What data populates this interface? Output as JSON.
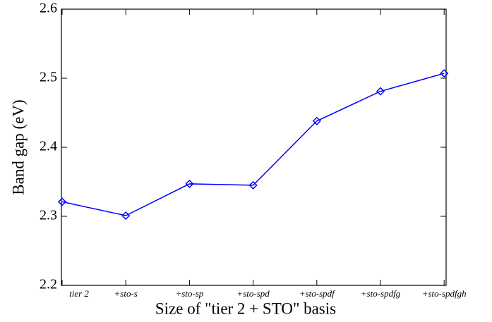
{
  "chart_data": {
    "type": "line",
    "x_label": "Size of \"tier 2 + STO\" basis",
    "y_label": "Band gap (eV)",
    "categories": [
      "tier 2",
      "+sto-s",
      "+sto-sp",
      "+sto-spd",
      "+sto-spdf",
      "+sto-spdfg",
      "+sto-spdfgh"
    ],
    "series": [
      {
        "color": "#0000ff",
        "values": [
          2.321,
          2.301,
          2.347,
          2.345,
          2.438,
          2.481,
          2.507
        ]
      }
    ],
    "ylim": [
      2.2,
      2.6
    ],
    "yticks": [
      2.2,
      2.3,
      2.4,
      2.5,
      2.6
    ]
  }
}
